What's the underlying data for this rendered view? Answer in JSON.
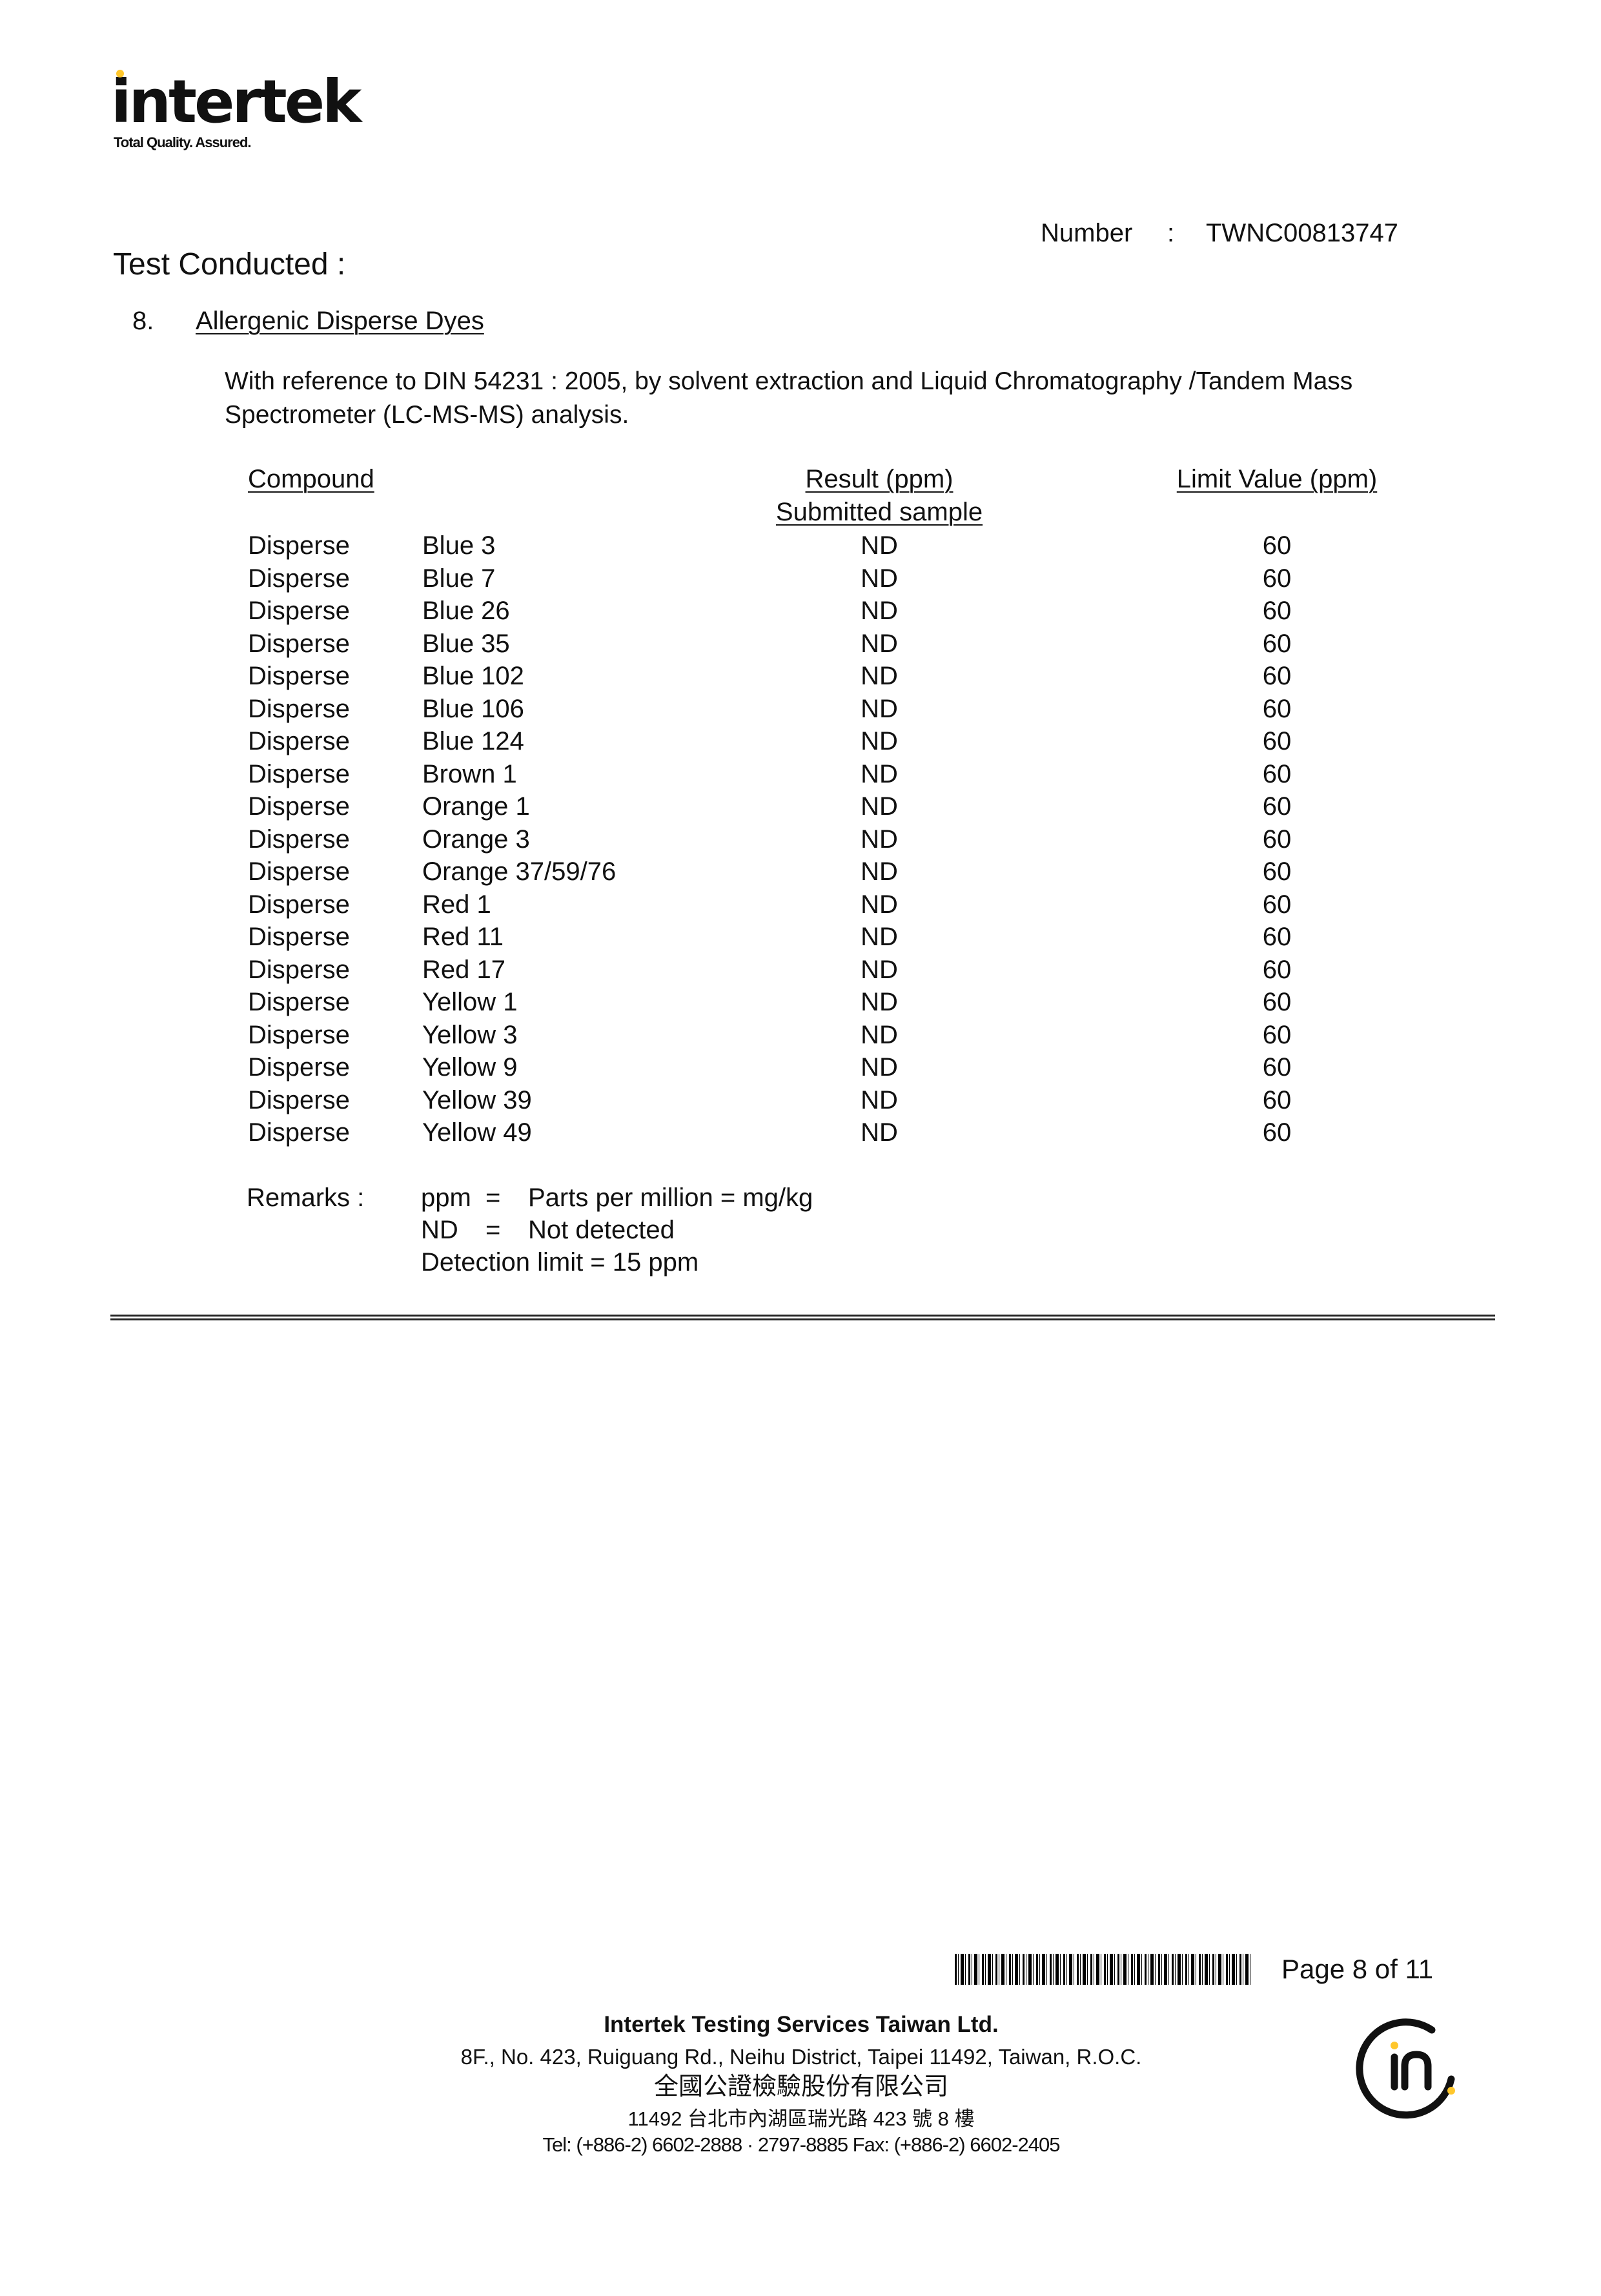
{
  "header": {
    "logo_text": "intertek",
    "logo_tagline": "Total Quality. Assured.",
    "number_label": "Number",
    "number_sep": ":",
    "number_value": "TWNC00813747"
  },
  "section": {
    "heading": "Test Conducted :",
    "index": "8.",
    "title": "Allergenic Disperse Dyes",
    "method_line1": "With reference to DIN 54231 : 2005, by solvent extraction and Liquid Chromatography /Tandem Mass",
    "method_line2": "Spectrometer (LC-MS-MS) analysis."
  },
  "table": {
    "col_compound": "Compound",
    "col_result": "Result (ppm)",
    "col_result_sub": "Submitted sample",
    "col_limit": "Limit Value (ppm)",
    "rows": [
      {
        "class": "Disperse",
        "name": "Blue 3",
        "result": "ND",
        "limit": "60"
      },
      {
        "class": "Disperse",
        "name": "Blue 7",
        "result": "ND",
        "limit": "60"
      },
      {
        "class": "Disperse",
        "name": "Blue 26",
        "result": "ND",
        "limit": "60"
      },
      {
        "class": "Disperse",
        "name": "Blue 35",
        "result": "ND",
        "limit": "60"
      },
      {
        "class": "Disperse",
        "name": "Blue 102",
        "result": "ND",
        "limit": "60"
      },
      {
        "class": "Disperse",
        "name": "Blue 106",
        "result": "ND",
        "limit": "60"
      },
      {
        "class": "Disperse",
        "name": "Blue 124",
        "result": "ND",
        "limit": "60"
      },
      {
        "class": "Disperse",
        "name": "Brown 1",
        "result": "ND",
        "limit": "60"
      },
      {
        "class": "Disperse",
        "name": "Orange 1",
        "result": "ND",
        "limit": "60"
      },
      {
        "class": "Disperse",
        "name": "Orange 3",
        "result": "ND",
        "limit": "60"
      },
      {
        "class": "Disperse",
        "name": "Orange 37/59/76",
        "result": "ND",
        "limit": "60"
      },
      {
        "class": "Disperse",
        "name": "Red 1",
        "result": "ND",
        "limit": "60"
      },
      {
        "class": "Disperse",
        "name": "Red 11",
        "result": "ND",
        "limit": "60"
      },
      {
        "class": "Disperse",
        "name": "Red 17",
        "result": "ND",
        "limit": "60"
      },
      {
        "class": "Disperse",
        "name": "Yellow 1",
        "result": "ND",
        "limit": "60"
      },
      {
        "class": "Disperse",
        "name": "Yellow 3",
        "result": "ND",
        "limit": "60"
      },
      {
        "class": "Disperse",
        "name": "Yellow 9",
        "result": "ND",
        "limit": "60"
      },
      {
        "class": "Disperse",
        "name": "Yellow 39",
        "result": "ND",
        "limit": "60"
      },
      {
        "class": "Disperse",
        "name": "Yellow 49",
        "result": "ND",
        "limit": "60"
      }
    ]
  },
  "remarks": {
    "label": "Remarks :",
    "ppm_term": "ppm",
    "ppm_eq": "=",
    "ppm_def": "Parts per million = mg/kg",
    "nd_term": "ND",
    "nd_eq": "=",
    "nd_def": "Not detected",
    "detection_limit": "Detection limit = 15 ppm"
  },
  "footer": {
    "page": "Page 8 of 11",
    "company": "Intertek Testing Services Taiwan Ltd.",
    "address": "8F., No. 423, Ruiguang Rd., Neihu District, Taipei 11492, Taiwan, R.O.C.",
    "company_zh": "全國公證檢驗股份有限公司",
    "address_zh": "11492 台北市內湖區瑞光路 423 號 8 樓",
    "contact": "Tel: (+886-2) 6602-2888 · 2797-8885    Fax: (+886-2) 6602-2405",
    "badge_text": "in"
  },
  "colors": {
    "brand_yellow": "#FFC72C",
    "text": "#111111"
  }
}
